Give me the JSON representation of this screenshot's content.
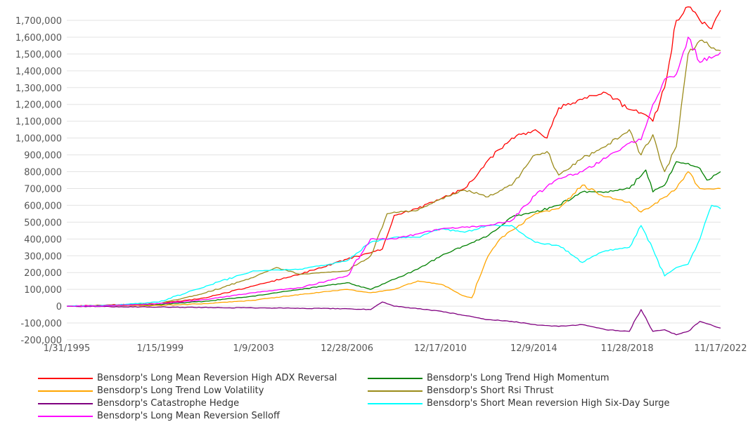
{
  "chart_data": {
    "type": "line",
    "title": "",
    "xlabel": "",
    "ylabel": "",
    "x_ticks": [
      "1/31/1995",
      "1/15/1999",
      "1/9/2003",
      "12/28/2006",
      "12/17/2010",
      "12/9/2014",
      "11/28/2018",
      "11/17/2022"
    ],
    "y_ticks": [
      "1,700,000",
      "1,600,000",
      "1,500,000",
      "1,400,000",
      "1,300,000",
      "1,200,000",
      "1,100,000",
      "1,000,000",
      "900,000",
      "800,000",
      "700,000",
      "600,000",
      "500,000",
      "400,000",
      "300,000",
      "200,000",
      "100,000",
      "0",
      "-100,000",
      "-200,000"
    ],
    "xlim": [
      1995.08,
      2022.88
    ],
    "ylim": [
      -200000,
      1700000
    ],
    "grid": true,
    "legend_position": "bottom",
    "series": [
      {
        "name": "Bensdorp's Long Mean Reversion High ADX Reversal",
        "color": "#ff0000",
        "x": [
          1995.08,
          1997,
          1999,
          2001,
          2003,
          2005,
          2007,
          2008.5,
          2009,
          2010,
          2011,
          2012,
          2013,
          2014,
          2015,
          2015.5,
          2016,
          2017,
          2018,
          2019,
          2019.5,
          2020,
          2020.5,
          2021,
          2021.5,
          2022,
          2022.5,
          2022.88
        ],
        "values": [
          0,
          8000,
          15000,
          50000,
          120000,
          190000,
          280000,
          340000,
          540000,
          580000,
          640000,
          700000,
          870000,
          1000000,
          1050000,
          1000000,
          1180000,
          1230000,
          1270000,
          1170000,
          1150000,
          1100000,
          1300000,
          1700000,
          1780000,
          1700000,
          1650000,
          1760000
        ]
      },
      {
        "name": "Bensdorp's Long Trend High Momentum",
        "color": "#008000",
        "x": [
          1995.08,
          1997,
          1999,
          2001,
          2003,
          2005,
          2007,
          2008,
          2009,
          2010,
          2011,
          2012,
          2013,
          2014,
          2015,
          2016,
          2017,
          2018,
          2019,
          2019.7,
          2020,
          2020.5,
          2021,
          2021.5,
          2022,
          2022.3,
          2022.88
        ],
        "values": [
          0,
          3000,
          10000,
          30000,
          60000,
          100000,
          140000,
          100000,
          160000,
          220000,
          300000,
          360000,
          420000,
          530000,
          560000,
          600000,
          680000,
          680000,
          700000,
          810000,
          680000,
          720000,
          860000,
          850000,
          820000,
          750000,
          800000
        ]
      },
      {
        "name": "Bensdorp's Long Trend Low Volatility",
        "color": "#ffa500",
        "x": [
          1995.08,
          1997,
          1999,
          2001,
          2003,
          2005,
          2007,
          2008,
          2009,
          2010,
          2011,
          2012,
          2012.3,
          2013,
          2013.5,
          2014,
          2015,
          2016,
          2017,
          2018,
          2019,
          2019.5,
          2020,
          2021,
          2021.5,
          2022,
          2022.88
        ],
        "values": [
          0,
          2000,
          5000,
          15000,
          35000,
          70000,
          100000,
          80000,
          100000,
          150000,
          130000,
          60000,
          50000,
          300000,
          400000,
          450000,
          550000,
          580000,
          720000,
          650000,
          620000,
          560000,
          600000,
          700000,
          800000,
          700000,
          700000
        ]
      },
      {
        "name": "Bensdorp's Short Rsi Thrust",
        "color": "#9b8b1a",
        "x": [
          1995.08,
          1997,
          1999,
          2001,
          2003,
          2004,
          2005,
          2006,
          2007,
          2008,
          2008.7,
          2009,
          2010,
          2011,
          2012,
          2013,
          2014,
          2015,
          2015.5,
          2016,
          2017,
          2018,
          2019,
          2019.5,
          2020,
          2020.5,
          2021,
          2021.5,
          2022,
          2022.88
        ],
        "values": [
          0,
          4000,
          15000,
          80000,
          170000,
          230000,
          190000,
          200000,
          210000,
          300000,
          550000,
          560000,
          570000,
          640000,
          690000,
          650000,
          720000,
          900000,
          920000,
          780000,
          880000,
          950000,
          1050000,
          900000,
          1020000,
          800000,
          950000,
          1500000,
          1580000,
          1520000
        ]
      },
      {
        "name": "Bensdorp's Catastrophe Hedge",
        "color": "#800080",
        "x": [
          1995.08,
          1999,
          2003,
          2007,
          2008,
          2008.5,
          2009,
          2010,
          2011,
          2013,
          2014,
          2015,
          2016,
          2017,
          2018,
          2019,
          2019.5,
          2020,
          2020.5,
          2021,
          2021.5,
          2022,
          2022.88
        ],
        "values": [
          0,
          -5000,
          -10000,
          -15000,
          -20000,
          25000,
          0,
          -15000,
          -30000,
          -80000,
          -90000,
          -110000,
          -120000,
          -110000,
          -140000,
          -150000,
          -20000,
          -150000,
          -140000,
          -170000,
          -150000,
          -90000,
          -130000
        ]
      },
      {
        "name": "Bensdorp's Short Mean reversion High Six-Day Surge",
        "color": "#00ffff",
        "x": [
          1995.08,
          1997,
          1999,
          2001,
          2003,
          2005,
          2007,
          2008,
          2009,
          2010,
          2011,
          2012,
          2013,
          2014,
          2015,
          2016,
          2017,
          2017.5,
          2018,
          2019,
          2019.5,
          2020,
          2020.5,
          2021,
          2021.5,
          2022,
          2022.5,
          2022.88
        ],
        "values": [
          0,
          5000,
          25000,
          120000,
          210000,
          220000,
          270000,
          380000,
          410000,
          410000,
          460000,
          440000,
          480000,
          480000,
          380000,
          360000,
          260000,
          300000,
          330000,
          350000,
          480000,
          340000,
          180000,
          230000,
          250000,
          400000,
          600000,
          580000
        ]
      },
      {
        "name": "Bensdorp's Long Mean Reversion Selloff",
        "color": "#ff00ff",
        "x": [
          1995.08,
          1997,
          1999,
          2001,
          2003,
          2005,
          2007,
          2008,
          2009,
          2010,
          2011,
          2012,
          2013,
          2014,
          2015,
          2016,
          2017,
          2018,
          2019,
          2019.5,
          2020,
          2020.5,
          2021,
          2021.5,
          2022,
          2022.88
        ],
        "values": [
          0,
          3000,
          15000,
          40000,
          80000,
          110000,
          180000,
          400000,
          400000,
          430000,
          460000,
          470000,
          480000,
          510000,
          660000,
          760000,
          800000,
          880000,
          970000,
          990000,
          1200000,
          1350000,
          1380000,
          1600000,
          1450000,
          1510000
        ]
      }
    ]
  }
}
